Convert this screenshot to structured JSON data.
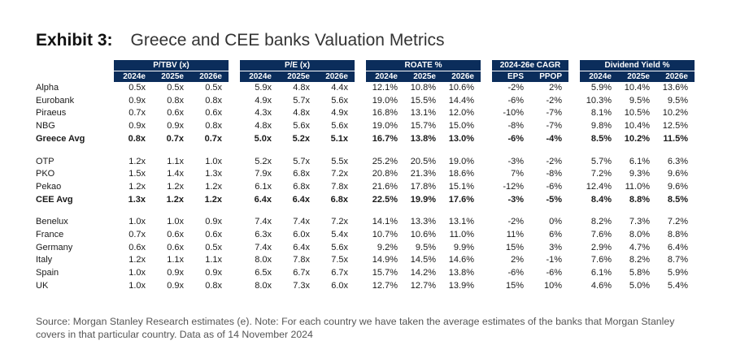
{
  "header": {
    "exhibit": "Exhibit 3:",
    "title": "Greece and CEE banks Valuation Metrics"
  },
  "groups": [
    {
      "label": "P/TBV (x)",
      "cols": [
        "2024e",
        "2025e",
        "2026e"
      ]
    },
    {
      "label": "P/E (x)",
      "cols": [
        "2024e",
        "2025e",
        "2026e"
      ]
    },
    {
      "label": "ROATE %",
      "cols": [
        "2024e",
        "2025e",
        "2026e"
      ]
    },
    {
      "label": "2024-26e CAGR",
      "cols": [
        "EPS",
        "PPOP"
      ]
    },
    {
      "label": "Dividend Yield %",
      "cols": [
        "2024e",
        "2025e",
        "2026e"
      ]
    }
  ],
  "rows": [
    {
      "name": "Alpha",
      "vals": [
        "0.5x",
        "0.5x",
        "0.5x",
        "5.9x",
        "4.8x",
        "4.4x",
        "12.1%",
        "10.8%",
        "10.6%",
        "-2%",
        "2%",
        "5.9%",
        "10.4%",
        "13.6%"
      ]
    },
    {
      "name": "Eurobank",
      "vals": [
        "0.9x",
        "0.8x",
        "0.8x",
        "4.9x",
        "5.7x",
        "5.6x",
        "19.0%",
        "15.5%",
        "14.4%",
        "-6%",
        "-2%",
        "10.3%",
        "9.5%",
        "9.5%"
      ]
    },
    {
      "name": "Piraeus",
      "vals": [
        "0.7x",
        "0.6x",
        "0.6x",
        "4.3x",
        "4.8x",
        "4.9x",
        "16.8%",
        "13.1%",
        "12.0%",
        "-10%",
        "-7%",
        "8.1%",
        "10.5%",
        "10.2%"
      ]
    },
    {
      "name": "NBG",
      "vals": [
        "0.9x",
        "0.9x",
        "0.8x",
        "4.8x",
        "5.6x",
        "5.6x",
        "19.0%",
        "15.7%",
        "15.0%",
        "-8%",
        "-7%",
        "9.8%",
        "10.4%",
        "12.5%"
      ]
    },
    {
      "name": "Greece Avg",
      "bold": true,
      "vals": [
        "0.8x",
        "0.7x",
        "0.7x",
        "5.0x",
        "5.2x",
        "5.1x",
        "16.7%",
        "13.8%",
        "13.0%",
        "-6%",
        "-4%",
        "8.5%",
        "10.2%",
        "11.5%"
      ]
    },
    {
      "spacer": true
    },
    {
      "name": "OTP",
      "vals": [
        "1.2x",
        "1.1x",
        "1.0x",
        "5.2x",
        "5.7x",
        "5.5x",
        "25.2%",
        "20.5%",
        "19.0%",
        "-3%",
        "-2%",
        "5.7%",
        "6.1%",
        "6.3%"
      ]
    },
    {
      "name": "PKO",
      "vals": [
        "1.5x",
        "1.4x",
        "1.3x",
        "7.9x",
        "6.8x",
        "7.2x",
        "20.8%",
        "21.3%",
        "18.6%",
        "7%",
        "-8%",
        "7.2%",
        "9.3%",
        "9.6%"
      ]
    },
    {
      "name": "Pekao",
      "vals": [
        "1.2x",
        "1.2x",
        "1.2x",
        "6.1x",
        "6.8x",
        "7.8x",
        "21.6%",
        "17.8%",
        "15.1%",
        "-12%",
        "-6%",
        "12.4%",
        "11.0%",
        "9.6%"
      ]
    },
    {
      "name": "CEE Avg",
      "bold": true,
      "vals": [
        "1.3x",
        "1.2x",
        "1.2x",
        "6.4x",
        "6.4x",
        "6.8x",
        "22.5%",
        "19.9%",
        "17.6%",
        "-3%",
        "-5%",
        "8.4%",
        "8.8%",
        "8.5%"
      ]
    },
    {
      "spacer": true
    },
    {
      "name": "Benelux",
      "vals": [
        "1.0x",
        "1.0x",
        "0.9x",
        "7.4x",
        "7.4x",
        "7.2x",
        "14.1%",
        "13.3%",
        "13.1%",
        "-2%",
        "0%",
        "8.2%",
        "7.3%",
        "7.2%"
      ]
    },
    {
      "name": "France",
      "vals": [
        "0.7x",
        "0.6x",
        "0.6x",
        "6.3x",
        "6.0x",
        "5.4x",
        "10.7%",
        "10.6%",
        "11.0%",
        "11%",
        "6%",
        "7.6%",
        "8.0%",
        "8.8%"
      ]
    },
    {
      "name": "Germany",
      "vals": [
        "0.6x",
        "0.6x",
        "0.5x",
        "7.4x",
        "6.4x",
        "5.6x",
        "9.2%",
        "9.5%",
        "9.9%",
        "15%",
        "3%",
        "2.9%",
        "4.7%",
        "6.4%"
      ]
    },
    {
      "name": "Italy",
      "vals": [
        "1.2x",
        "1.1x",
        "1.1x",
        "8.0x",
        "7.8x",
        "7.5x",
        "14.9%",
        "14.5%",
        "14.6%",
        "2%",
        "-1%",
        "7.6%",
        "8.2%",
        "8.7%"
      ]
    },
    {
      "name": "Spain",
      "vals": [
        "1.0x",
        "0.9x",
        "0.9x",
        "6.5x",
        "6.7x",
        "6.7x",
        "15.7%",
        "14.2%",
        "13.8%",
        "-6%",
        "-6%",
        "6.1%",
        "5.8%",
        "5.9%"
      ]
    },
    {
      "name": "UK",
      "vals": [
        "1.0x",
        "0.9x",
        "0.8x",
        "8.0x",
        "7.3x",
        "6.0x",
        "12.7%",
        "12.7%",
        "13.9%",
        "15%",
        "10%",
        "4.6%",
        "5.0%",
        "5.4%"
      ]
    }
  ],
  "source": "Source: Morgan Stanley Research estimates (e). Note: For each country we have taken the average estimates of the banks that Morgan Stanley covers in that particular country. Data as of 14 November 2024"
}
